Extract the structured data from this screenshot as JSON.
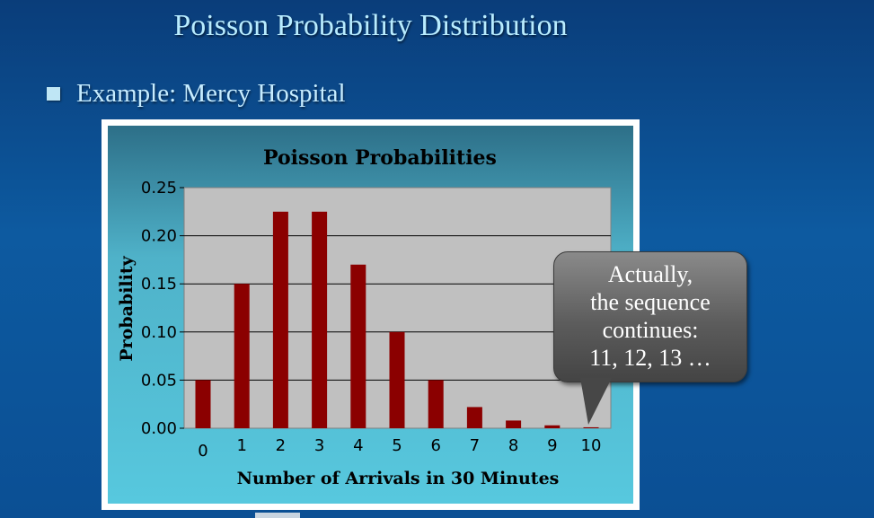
{
  "slide": {
    "title": "Poisson Probability Distribution",
    "bullet": "Example:  Mercy Hospital"
  },
  "callout": {
    "lines": [
      "Actually,",
      "the sequence",
      "continues:",
      "11, 12, 13  …"
    ]
  },
  "colors": {
    "bar": "#8b0000",
    "plot_bg": "#c0c0c0",
    "frame_gradient_top": "#2d6f88",
    "frame_gradient_bottom": "#57c8de"
  },
  "chart_data": {
    "type": "bar",
    "title": "Poisson Probabilities",
    "xlabel": "Number of Arrivals in 30 Minutes",
    "ylabel": "Probability",
    "categories": [
      "0",
      "1",
      "2",
      "3",
      "4",
      "5",
      "6",
      "7",
      "8",
      "9",
      "10"
    ],
    "values": [
      0.05,
      0.15,
      0.225,
      0.225,
      0.17,
      0.1,
      0.05,
      0.022,
      0.008,
      0.003,
      0.001
    ],
    "ylim": [
      0,
      0.25
    ],
    "yticks": [
      "0.00",
      "0.05",
      "0.10",
      "0.15",
      "0.20",
      "0.25"
    ],
    "grid": true,
    "legend": false
  }
}
